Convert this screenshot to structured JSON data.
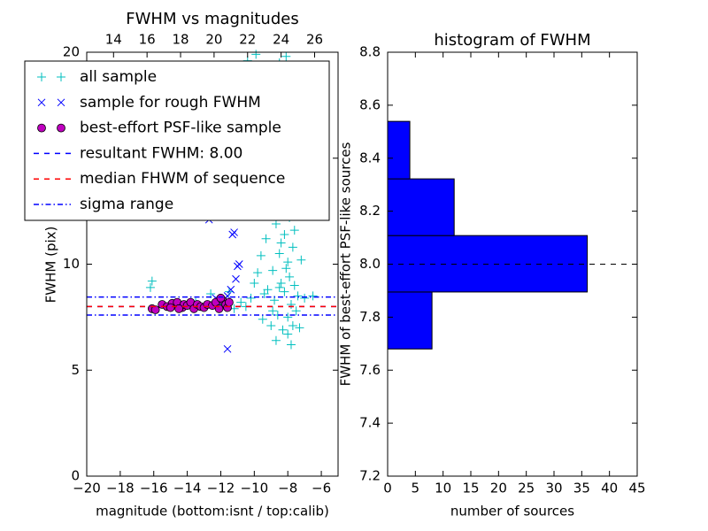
{
  "chart_data": [
    {
      "type": "scatter",
      "title": "FWHM vs magnitudes",
      "x_label": "magnitude (bottom:isnt / top:calib)",
      "y_label": "FWHM (pix)",
      "xlim": [
        -20,
        -5
      ],
      "ylim": [
        0,
        20
      ],
      "xticks": [
        {
          "value": -20,
          "label": "−20"
        },
        {
          "value": -18,
          "label": "−18"
        },
        {
          "value": -16,
          "label": "−16"
        },
        {
          "value": -14,
          "label": "−14"
        },
        {
          "value": -12,
          "label": "−12"
        },
        {
          "value": -10,
          "label": "−10"
        },
        {
          "value": -8,
          "label": "−8"
        },
        {
          "value": -6,
          "label": "−6"
        }
      ],
      "yticks": [
        0,
        5,
        10,
        15,
        20
      ],
      "x2lim": [
        12.4,
        27.4
      ],
      "x2ticks": [
        14,
        16,
        18,
        20,
        22,
        24,
        26
      ],
      "legend": "upper left",
      "series": [
        {
          "name": "all sample",
          "color": "#00bfbf",
          "marker": "+",
          "x": [
            -16.1,
            -16.2,
            -12.6,
            -11.5,
            -11.2,
            -10.8,
            -10.5,
            -10.2,
            -10,
            -9.8,
            -9.6,
            -9.5,
            -9.3,
            -9.2,
            -9.1,
            -9,
            -9,
            -8.9,
            -8.8,
            -8.8,
            -8.7,
            -8.6,
            -8.6,
            -8.5,
            -8.5,
            -8.4,
            -8.4,
            -8.3,
            -8.3,
            -8.2,
            -8.2,
            -8.1,
            -8.1,
            -8,
            -8,
            -8,
            -7.9,
            -7.9,
            -7.8,
            -7.8,
            -7.8,
            -7.7,
            -7.7,
            -7.6,
            -7.6,
            -7.5,
            -7.5,
            -7.4,
            -7.3,
            -7.2,
            -7,
            -6.5,
            -9.9,
            -10.4,
            -8.7,
            -8.9,
            -9.4,
            -11.8,
            -12.2,
            -13.5,
            -8.3,
            -8.6,
            -9.2,
            -7.9,
            -8,
            -8.1,
            -8.4,
            -8.2,
            -7.7,
            -8.5
          ],
          "values": [
            9.2,
            8.9,
            8.6,
            8.7,
            7.9,
            8.2,
            8,
            8.4,
            9.1,
            9.6,
            10.4,
            7.4,
            11.2,
            8.8,
            12.5,
            7.1,
            13.8,
            9.7,
            16.5,
            8.3,
            11.9,
            7.6,
            14.2,
            10.5,
            19.5,
            9.1,
            12.8,
            6.9,
            15.3,
            8.7,
            11.4,
            13.5,
            19.8,
            7.5,
            10.1,
            17.2,
            9.4,
            12.2,
            6.2,
            8.1,
            14.6,
            10.8,
            7.1,
            9,
            11.6,
            7.8,
            13,
            8.5,
            7,
            10.2,
            8.4,
            8.5,
            19.9,
            19.6,
            6.4,
            7.8,
            8.6,
            8.1,
            8,
            8.2,
            18.3,
            16,
            15.1,
            16.4,
            6.7,
            9.8,
            11,
            13.9,
            12.7,
            8.9
          ]
        },
        {
          "name": "sample for rough FWHM",
          "color": "#0000ff",
          "marker": "x",
          "x": [
            -11.6,
            -11.2,
            -11.3,
            -11,
            -10.9,
            -11.1,
            -11.6,
            -12.3,
            -11.4,
            -12.7
          ],
          "values": [
            6,
            11.5,
            11.4,
            9.9,
            10,
            9.3,
            8.5,
            8.4,
            8.8,
            12.1
          ]
        },
        {
          "name": "best-effort PSF-like sample",
          "color": "#bf00bf",
          "marker": "o",
          "x": [
            -16.1,
            -15.9,
            -15.5,
            -15.2,
            -14.9,
            -14.6,
            -14.3,
            -14.2,
            -14,
            -13.8,
            -13.6,
            -13.4,
            -13.2,
            -13,
            -12.8,
            -12.5,
            -12.3,
            -12.1,
            -11.9,
            -11.7,
            -11.6,
            -11.5,
            -12,
            -14.5,
            -15
          ],
          "values": [
            7.9,
            7.85,
            8.1,
            8,
            8.15,
            8.2,
            7.95,
            8.1,
            8.05,
            8.2,
            7.9,
            8.1,
            8,
            7.95,
            8.1,
            8.05,
            8.2,
            7.9,
            8.3,
            8.1,
            7.95,
            8.2,
            8.4,
            7.9,
            7.95
          ]
        }
      ],
      "lines": [
        {
          "name": "resultant FWHM: 8.00",
          "color": "#0000ff",
          "style": "dashed",
          "values": [
            8.0
          ]
        },
        {
          "name": "median FHWM of sequence",
          "color": "#ff0000",
          "style": "dashed",
          "values": [
            8.0
          ]
        },
        {
          "name": "sigma range",
          "color": "#0000ff",
          "style": "dashdot",
          "values": [
            7.6,
            8.45
          ]
        }
      ]
    },
    {
      "type": "histogram",
      "orientation": "horizontal",
      "title": "histogram of FWHM",
      "x_label": "number of sources",
      "y_label": "FWHM of best-effort PSF-like sources",
      "xlim": [
        0,
        45
      ],
      "ylim": [
        7.2,
        8.8
      ],
      "xticks": [
        0,
        5,
        10,
        15,
        20,
        25,
        30,
        35,
        40,
        45
      ],
      "yticks": [
        7.2,
        7.4,
        7.6,
        7.8,
        {
          "value": 8.0,
          "label": "8.0"
        },
        8.2,
        8.4,
        8.6,
        8.8
      ],
      "bins": [
        7.68,
        7.895,
        8.108,
        8.322,
        8.539
      ],
      "values": [
        8,
        36,
        12,
        4
      ],
      "color": "#0000ff",
      "hline": 8.0,
      "hline_color": "#000000"
    }
  ]
}
